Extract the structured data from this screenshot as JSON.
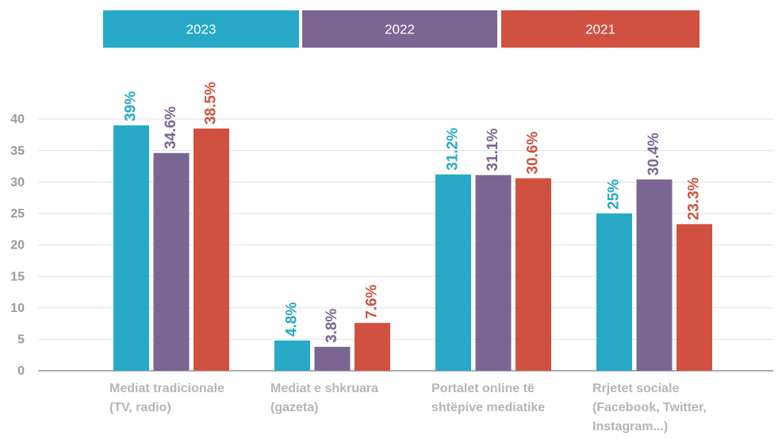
{
  "chart_data": {
    "type": "bar",
    "categories": [
      [
        "Mediat tradicionale",
        "(TV, radio)"
      ],
      [
        "Mediat e shkruara",
        "(gazeta)"
      ],
      [
        "Portalet online të",
        "shtëpive mediatike"
      ],
      [
        "Rrjetet sociale",
        "(Facebook, Twitter,",
        "Instagram...)"
      ]
    ],
    "series": [
      {
        "name": "2023",
        "color": "#27a9c7",
        "values": [
          39,
          4.8,
          31.2,
          25
        ],
        "value_labels": [
          "39%",
          "4.8%",
          "31.2%",
          "25%"
        ]
      },
      {
        "name": "2022",
        "color": "#7b6593",
        "values": [
          34.6,
          3.8,
          31.1,
          30.4
        ],
        "value_labels": [
          "34.6%",
          "3.8%",
          "31.1%",
          "30.4%"
        ]
      },
      {
        "name": "2021",
        "color": "#d05140",
        "values": [
          38.5,
          7.6,
          30.6,
          23.3
        ],
        "value_labels": [
          "38.5%",
          "7.6%",
          "30.6%",
          "23.3%"
        ]
      }
    ],
    "ylim": [
      0,
      40
    ],
    "yticks": [
      0,
      5,
      10,
      15,
      20,
      25,
      30,
      35,
      40
    ],
    "grid": true,
    "legend": "top"
  }
}
